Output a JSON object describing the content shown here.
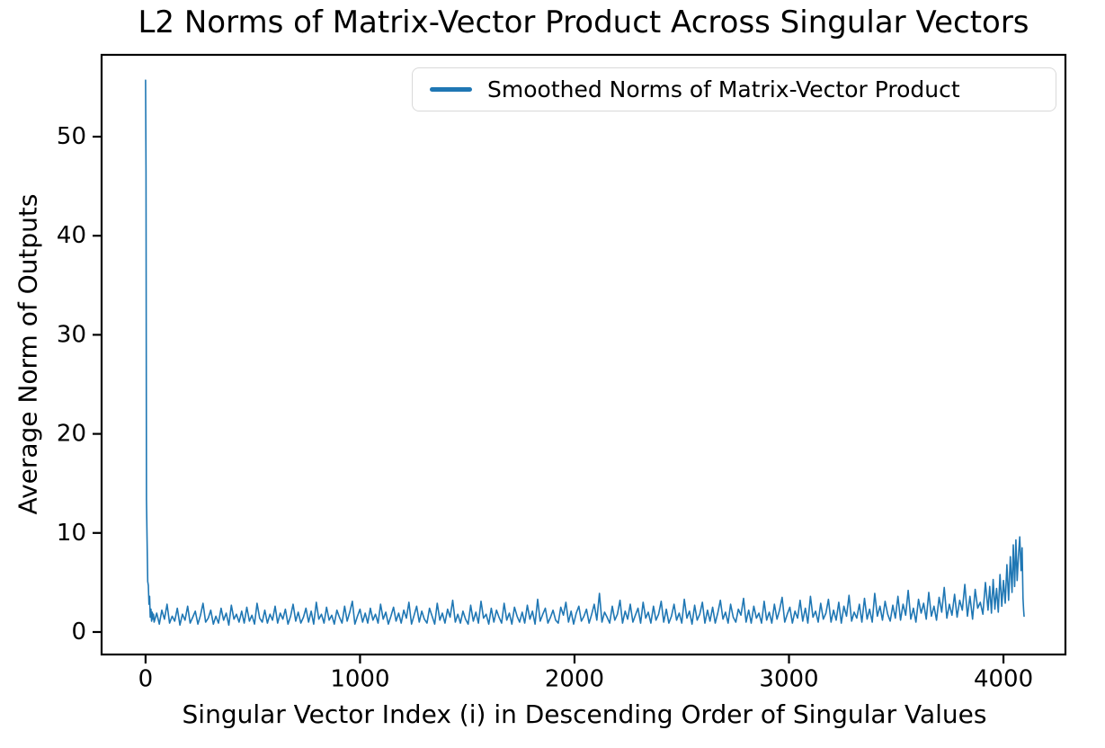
{
  "figure": {
    "background": "#ffffff",
    "text_color": "#000000"
  },
  "chart_data": {
    "type": "line",
    "title": "L2 Norms of Matrix-Vector Product Across Singular Vectors",
    "xlabel": "Singular Vector Index (i) in Descending Order of Singular Values",
    "ylabel": "Average Norm of Outputs",
    "xticks": [
      0,
      1000,
      2000,
      3000,
      4000
    ],
    "yticks": [
      0,
      10,
      20,
      30,
      40,
      50
    ],
    "xlim": [
      -205,
      4289
    ],
    "ylim": [
      -2.27,
      58.26
    ],
    "grid": false,
    "legend": {
      "position": "upper right",
      "entries": [
        {
          "label": "Smoothed Norms of Matrix-Vector Product",
          "color": "#1f77b4"
        }
      ]
    },
    "axis_color": "#000000",
    "spine_width": 2.2,
    "notes": "Single noisy series over singular vector indices 0..4096; large spike at i=0 (~55.7), flat noisy band ~0.3-4 slowly rising, terminal spikes up to ~9.6 near i~4080, final value ~1.6",
    "series": [
      {
        "name": "Smoothed Norms of Matrix-Vector Product",
        "color": "#1f77b4",
        "line_width": 1.6,
        "head_points": [
          [
            0,
            55.7
          ],
          [
            2,
            46.5
          ],
          [
            4,
            13.4
          ],
          [
            7,
            9.2
          ],
          [
            10,
            5.1
          ],
          [
            13,
            4.7
          ],
          [
            16,
            2.8
          ],
          [
            19,
            3.6
          ],
          [
            22,
            1.5
          ],
          [
            25,
            2.3
          ],
          [
            28,
            1.1
          ],
          [
            31,
            2.0
          ],
          [
            34,
            1.3
          ],
          [
            37,
            1.8
          ]
        ],
        "body": {
          "x_start": 40,
          "x_step": 12,
          "y": [
            1.0,
            1.9,
            0.8,
            2.2,
            1.3,
            2.8,
            0.9,
            1.6,
            1.1,
            2.4,
            0.7,
            1.8,
            1.2,
            2.6,
            0.9,
            1.5,
            2.1,
            0.8,
            1.7,
            2.9,
            1.0,
            1.4,
            2.2,
            0.8,
            1.6,
            0.9,
            2.4,
            1.2,
            1.9,
            0.7,
            2.7,
            1.3,
            1.8,
            1.0,
            2.1,
            0.9,
            2.5,
            1.1,
            1.7,
            0.8,
            2.9,
            1.4,
            1.0,
            2.2,
            0.9,
            1.8,
            1.2,
            2.6,
            0.9,
            1.9,
            1.3,
            2.3,
            0.8,
            1.6,
            2.8,
            1.1,
            2.0,
            0.9,
            1.5,
            2.4,
            1.0,
            2.1,
            0.8,
            3.0,
            1.3,
            1.8,
            0.9,
            2.5,
            1.2,
            1.7,
            0.8,
            2.2,
            1.5,
            0.9,
            2.6,
            1.1,
            2.0,
            3.1,
            0.8,
            1.6,
            2.3,
            1.0,
            1.9,
            0.9,
            2.4,
            1.2,
            1.8,
            0.9,
            2.8,
            1.3,
            2.0,
            0.8,
            1.6,
            2.5,
            1.1,
            1.9,
            0.9,
            2.2,
            1.4,
            3.0,
            0.8,
            1.7,
            2.6,
            1.0,
            2.1,
            1.3,
            0.9,
            2.4,
            1.6,
            0.8,
            2.9,
            1.2,
            1.9,
            0.9,
            2.3,
            1.5,
            3.2,
            1.0,
            1.8,
            0.9,
            2.1,
            1.3,
            0.8,
            2.7,
            1.1,
            2.0,
            0.9,
            3.1,
            1.4,
            1.8,
            0.8,
            2.4,
            1.0,
            2.2,
            1.5,
            0.9,
            2.9,
            1.2,
            1.9,
            0.8,
            2.5,
            1.6,
            1.0,
            2.0,
            0.9,
            2.7,
            1.3,
            2.1,
            0.8,
            3.3,
            1.1,
            1.8,
            2.4,
            0.9,
            1.5,
            2.2,
            1.2,
            0.9,
            2.5,
            1.7,
            3.0,
            1.0,
            2.1,
            0.8,
            1.9,
            2.6,
            1.1,
            1.6,
            2.3,
            0.9,
            1.8,
            2.8,
            1.2,
            3.9,
            1.0,
            2.0,
            1.5,
            0.9,
            2.6,
            1.2,
            1.8,
            3.2,
            0.9,
            2.1,
            1.3,
            2.8,
            1.0,
            1.7,
            2.4,
            0.9,
            3.0,
            1.4,
            2.0,
            0.9,
            2.6,
            1.2,
            1.8,
            3.1,
            1.0,
            2.3,
            0.9,
            1.6,
            2.8,
            1.2,
            1.9,
            0.9,
            3.3,
            1.4,
            2.1,
            0.8,
            2.7,
            1.2,
            1.8,
            3.0,
            0.9,
            2.2,
            1.1,
            2.5,
            0.9,
            1.9,
            3.2,
            1.3,
            2.0,
            0.9,
            2.8,
            1.5,
            1.0,
            2.3,
            1.7,
            3.4,
            1.0,
            2.2,
            0.9,
            2.6,
            1.4,
            1.9,
            0.9,
            3.1,
            1.2,
            2.0,
            0.9,
            2.8,
            1.3,
            2.2,
            3.5,
            1.0,
            1.8,
            2.5,
            0.9,
            2.1,
            1.4,
            3.2,
            1.1,
            2.4,
            0.9,
            3.6,
            1.5,
            2.1,
            1.0,
            2.9,
            1.3,
            1.9,
            3.3,
            1.0,
            2.2,
            1.2,
            3.0,
            0.9,
            2.6,
            1.6,
            3.7,
            1.1,
            2.0,
            1.4,
            2.8,
            1.0,
            3.4,
            1.3,
            2.3,
            1.0,
            3.9,
            1.6,
            2.6,
            1.2,
            3.1,
            1.8,
            1.1,
            2.7,
            1.4,
            3.6,
            1.2,
            2.8,
            1.7,
            4.2,
            1.3,
            2.4,
            1.0,
            3.3,
            1.9,
            2.9,
            1.3,
            4.0,
            1.6,
            2.6,
            1.2,
            3.5,
            2.0,
            4.5,
            1.4,
            2.8,
            1.7,
            3.8,
            1.5,
            3.2,
            2.2,
            4.8,
            1.6,
            3.6,
            1.3,
            4.3,
            2.4,
            3.0,
            1.8,
            5.0
          ]
        },
        "tail_points": [
          [
            3928,
            2.2
          ],
          [
            3936,
            4.6
          ],
          [
            3944,
            1.9
          ],
          [
            3952,
            5.3
          ],
          [
            3960,
            2.3
          ],
          [
            3968,
            4.4
          ],
          [
            3976,
            2.0
          ],
          [
            3984,
            5.8
          ],
          [
            3992,
            2.6
          ],
          [
            4000,
            5.2
          ],
          [
            4008,
            2.9
          ],
          [
            4016,
            6.8
          ],
          [
            4024,
            3.2
          ],
          [
            4032,
            7.6
          ],
          [
            4040,
            4.0
          ],
          [
            4046,
            8.8
          ],
          [
            4052,
            4.6
          ],
          [
            4058,
            9.3
          ],
          [
            4064,
            5.2
          ],
          [
            4070,
            7.8
          ],
          [
            4076,
            9.6
          ],
          [
            4082,
            6.2
          ],
          [
            4087,
            8.5
          ],
          [
            4091,
            3.4
          ],
          [
            4094,
            2.2
          ],
          [
            4096,
            1.6
          ]
        ]
      }
    ]
  }
}
